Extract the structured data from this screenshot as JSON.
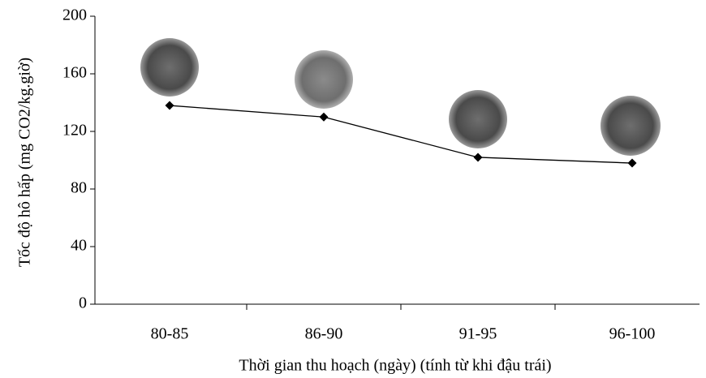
{
  "chart_data": {
    "type": "line",
    "x_label": "Thời gian thu hoạch (ngày)  (tính từ khi đậu trái)",
    "y_label": "Tốc độ hô hấp (mg CO2/kg.giờ)",
    "categories": [
      "80-85",
      "86-90",
      "91-95",
      "96-100"
    ],
    "values": [
      138,
      130,
      102,
      98
    ],
    "color": "#000000",
    "ylim": [
      0,
      200
    ],
    "yticks": [
      0,
      40,
      80,
      120,
      160,
      200
    ]
  }
}
